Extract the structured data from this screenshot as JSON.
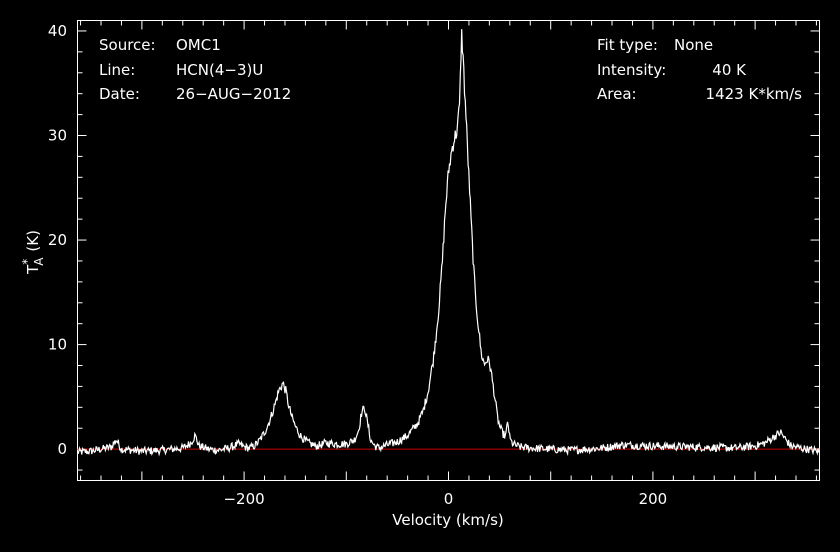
{
  "chart_data": {
    "type": "line",
    "title": "",
    "xlabel": "Velocity (km/s)",
    "ylabel": "T*A (K)",
    "ylabel_parts": {
      "main": "T",
      "sup": "*",
      "sub": "A",
      "unit": "(K)"
    },
    "xlim": [
      -363,
      363
    ],
    "ylim": [
      -3,
      41
    ],
    "grid": false,
    "legend": "none",
    "x_ticks": [
      -200,
      0,
      200
    ],
    "x_tick_labels": [
      "−200",
      "0",
      "200"
    ],
    "y_ticks": [
      0,
      10,
      20,
      30,
      40
    ],
    "y_tick_labels": [
      "0",
      "10",
      "20",
      "30",
      "40"
    ],
    "baseline_value": 0,
    "colors": {
      "background": "#000000",
      "axes": "#ffffff",
      "spectrum": "#ffffff",
      "baseline": "#cc0000"
    },
    "series": [
      {
        "x": [
          -363,
          -350,
          -340,
          -330,
          -325,
          -320,
          -300,
          -280,
          -260,
          -252,
          -248,
          -244,
          -235,
          -225,
          -215,
          -205,
          -200,
          -195,
          -190,
          -185,
          -180,
          -175,
          -170,
          -166,
          -162,
          -159,
          -156,
          -153,
          -150,
          -145,
          -140,
          -135,
          -130,
          -125,
          -120,
          -110,
          -100,
          -92,
          -88,
          -85,
          -82,
          -79,
          -76,
          -72,
          -68,
          -60,
          -50,
          -40,
          -30,
          -25,
          -20,
          -15,
          -12,
          -9,
          -6,
          -3,
          0,
          3,
          5,
          7,
          9,
          11,
          12,
          13,
          14,
          16,
          18,
          20,
          22,
          24,
          26,
          28,
          30,
          32,
          35,
          38,
          40,
          42,
          44,
          46,
          48,
          50,
          53,
          56,
          58,
          60,
          62,
          65,
          70,
          80,
          100,
          120,
          150,
          170,
          200,
          240,
          280,
          300,
          310,
          320,
          325,
          330,
          335,
          345,
          363
        ],
        "y": [
          -0.3,
          -0.2,
          0,
          0.2,
          0.9,
          0,
          -0.2,
          -0.1,
          0.1,
          0.6,
          1.3,
          0.3,
          0,
          -0.1,
          0.1,
          0.5,
          0.2,
          0.1,
          0.3,
          0.8,
          1.6,
          2.7,
          4.2,
          5.6,
          6.3,
          5.5,
          4.0,
          3.0,
          2.2,
          1.3,
          0.8,
          0.5,
          0.3,
          0.4,
          0.6,
          0.5,
          0.5,
          0.9,
          1.8,
          3.5,
          4.0,
          2.4,
          0.8,
          0.3,
          0.1,
          0.4,
          0.7,
          1.3,
          2.5,
          3.6,
          5.5,
          8.5,
          11,
          14,
          18,
          23,
          26.5,
          28.5,
          29.5,
          30,
          31,
          33,
          37.5,
          39.8,
          38,
          34,
          30,
          26,
          22,
          18.5,
          15,
          13,
          11,
          9.2,
          8.1,
          8.6,
          8.3,
          7.2,
          5.8,
          4.5,
          3.0,
          2.2,
          1.5,
          1.2,
          2.7,
          1.0,
          0.6,
          0.4,
          0.2,
          0.1,
          0,
          -0.1,
          0.1,
          0.4,
          0.3,
          0.2,
          0.1,
          0.3,
          0.6,
          1.3,
          1.6,
          0.9,
          0.3,
          0.1,
          -0.2
        ]
      }
    ]
  },
  "info": {
    "source_label": "Source:",
    "source_value": "OMC1",
    "line_label": "Line:",
    "line_value": "HCN(4−3)U",
    "date_label": "Date:",
    "date_value": "26−AUG−2012",
    "fit_label": "Fit type:",
    "fit_value": "None",
    "intensity_label": "Intensity:",
    "intensity_value": "40 K",
    "area_label": "Area:",
    "area_value": "1423 K*km/s"
  }
}
